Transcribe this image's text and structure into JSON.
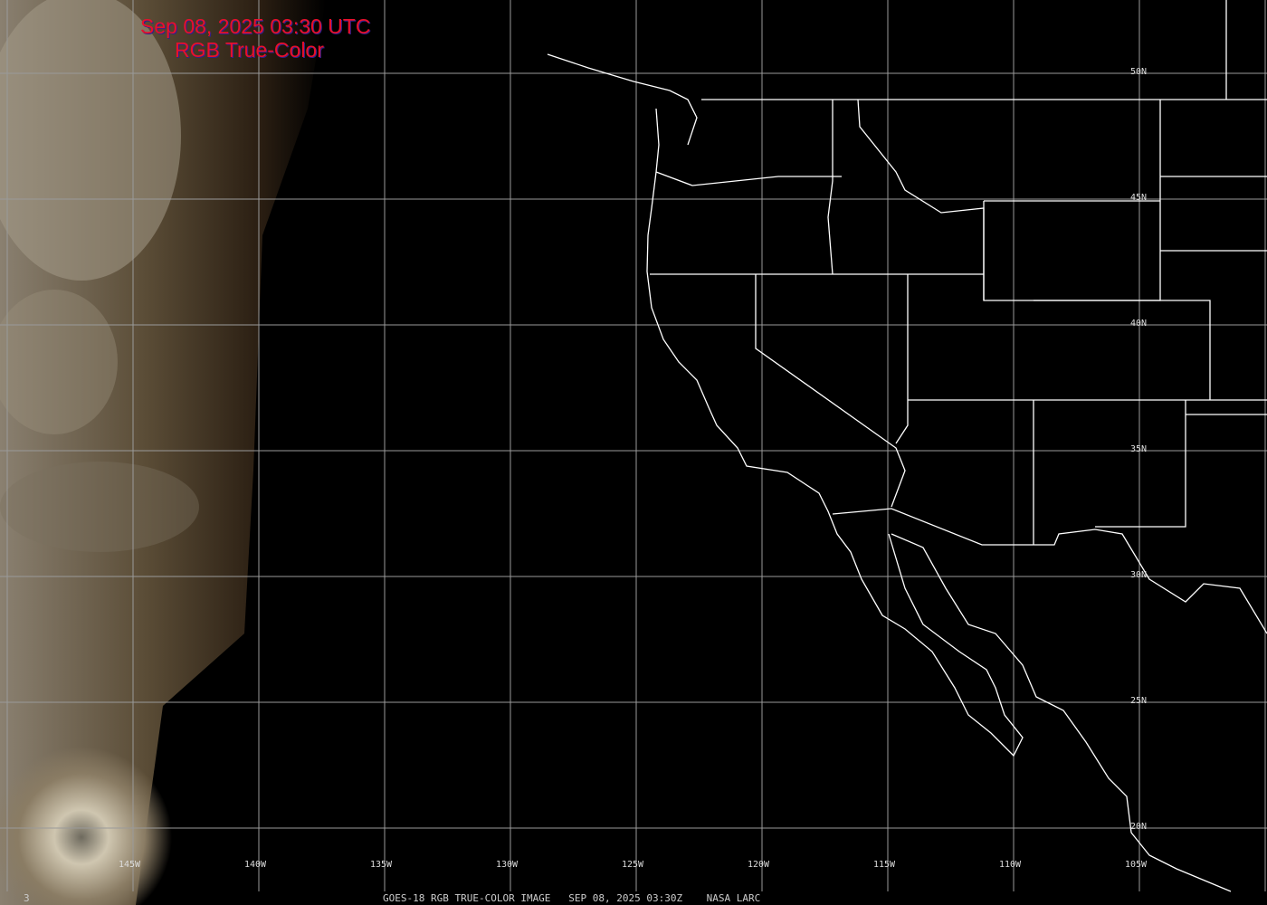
{
  "title": {
    "line1": "Sep 08, 2025 03:30 UTC",
    "line2": "RGB True-Color"
  },
  "longitude_labels": [
    "145W",
    "140W",
    "135W",
    "130W",
    "125W",
    "120W",
    "115W",
    "110W",
    "105W"
  ],
  "latitude_labels": [
    "50N",
    "45N",
    "40N",
    "35N",
    "30N",
    "25N",
    "20N"
  ],
  "footer": {
    "frame": "3",
    "caption": "GOES-18 RGB TRUE-COLOR IMAGE   SEP 08, 2025 03:30Z    NASA LARC"
  },
  "colors": {
    "title": "#e8102c",
    "grid": "#9a9a9a",
    "boundaries": "#ffffff"
  }
}
